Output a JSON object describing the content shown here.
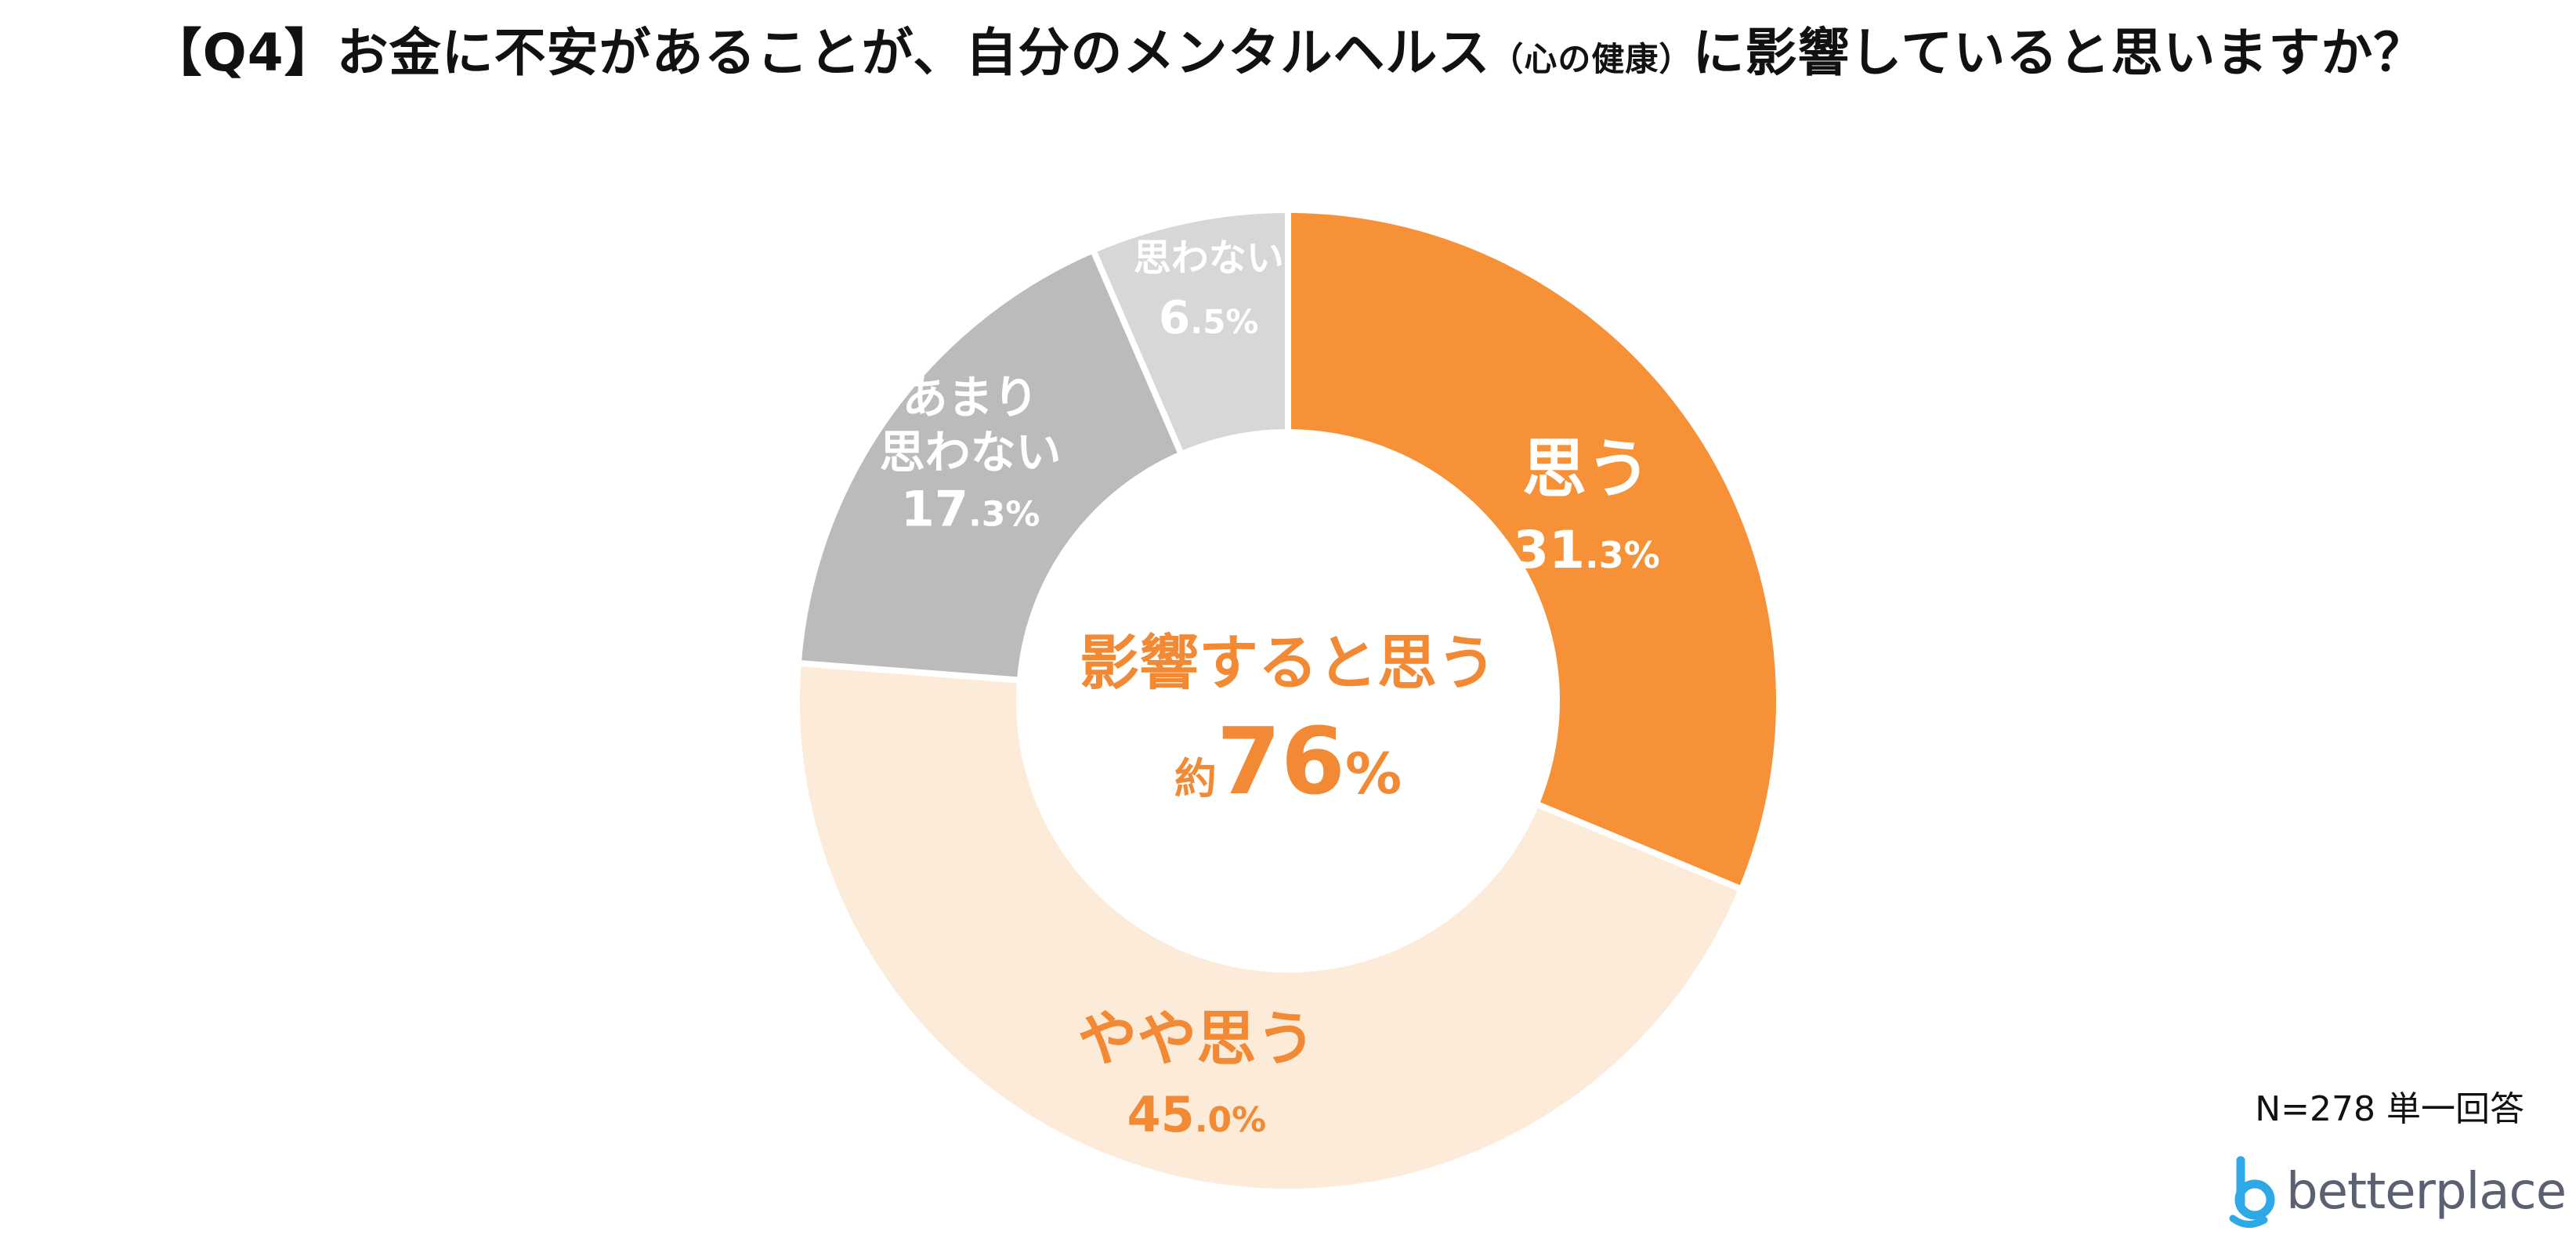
{
  "title": {
    "main": "【Q4】お金に不安があることが、自分のメンタルヘルス",
    "small": "（心の健康）",
    "tail": "に影響していると思いますか？"
  },
  "note": "N=278 単一回答",
  "logo_text": "betterplace",
  "colors": {
    "omou": "#F79138",
    "yaya": "#FDEBD9",
    "amari": "#BBBBBB",
    "omowanai": "#D7D7D7",
    "accent": "#F28A35",
    "white_label": "#FFFFFF",
    "logo_blue": "#2FA8E8",
    "logo_text": "#5B6170"
  },
  "chart_data": {
    "type": "pie",
    "donut": true,
    "title": "【Q4】お金に不安があることが、自分のメンタルヘルス（心の健康）に影響していると思いますか？",
    "categories": [
      "思う",
      "やや思う",
      "あまり思わない",
      "思わない"
    ],
    "values": [
      31.3,
      45.0,
      17.3,
      6.5
    ],
    "value_labels": [
      {
        "int": "31",
        "dec": ".3",
        "unit": "%"
      },
      {
        "int": "45",
        "dec": ".0",
        "unit": "%"
      },
      {
        "int": "17",
        "dec": ".3",
        "unit": "%"
      },
      {
        "int": "6",
        "dec": ".5",
        "unit": "%"
      }
    ],
    "label_lines": [
      [
        "思う"
      ],
      [
        "やや思う"
      ],
      [
        "あまり",
        "思わない"
      ],
      [
        "思わない"
      ]
    ],
    "center_label": {
      "line1": "影響すると思う",
      "prefix": "約",
      "value": "76",
      "unit": "%"
    }
  }
}
